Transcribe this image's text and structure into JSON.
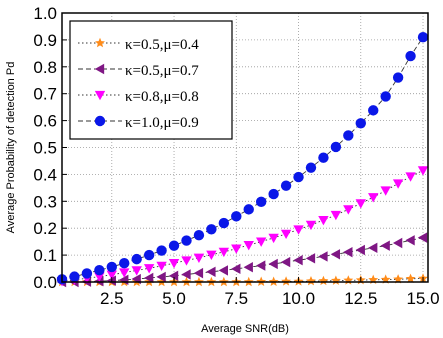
{
  "chart_data": {
    "type": "line",
    "title": "",
    "xlabel": "Average SNR(dB)",
    "ylabel": "Average Probability of detection Pd",
    "xlim": [
      0.5,
      15.2
    ],
    "ylim": [
      0,
      1.0
    ],
    "x_ticks": [
      2.5,
      5.0,
      7.5,
      10.0,
      12.5,
      15.0
    ],
    "x_tick_labels": [
      "2.5",
      "5.0",
      "7.5",
      "10.0",
      "12.5",
      "15.0"
    ],
    "y_ticks": [
      0,
      0.1,
      0.2,
      0.3,
      0.4,
      0.5,
      0.6,
      0.7,
      0.8,
      0.9,
      1.0
    ],
    "y_tick_labels": [
      "0.0",
      "0.1",
      "0.2",
      "0.3",
      "0.4",
      "0.5",
      "0.6",
      "0.7",
      "0.8",
      "0.9",
      "1.0"
    ],
    "grid": true,
    "legend_position": "top-left",
    "x": [
      0.5,
      1.0,
      1.5,
      2.0,
      2.5,
      3.0,
      3.5,
      4.0,
      4.5,
      5.0,
      5.5,
      6.0,
      6.5,
      7.0,
      7.5,
      8.0,
      8.5,
      9.0,
      9.5,
      10.0,
      10.5,
      11.0,
      11.5,
      12.0,
      12.5,
      13.0,
      13.5,
      14.0,
      14.5,
      15.0
    ],
    "series": [
      {
        "name": "κ=0.5,μ=0.4",
        "color": "#ff8c1a",
        "marker": "star",
        "line_style": "dotted",
        "values": [
          0.0,
          0.0,
          0.0,
          0.0,
          0.0,
          0.0,
          0.0,
          0.0,
          0.0,
          0.0,
          0.0,
          0.0,
          0.0,
          0.0,
          0.0,
          0.0,
          0.001,
          0.001,
          0.002,
          0.002,
          0.003,
          0.004,
          0.005,
          0.006,
          0.007,
          0.008,
          0.009,
          0.01,
          0.012,
          0.013
        ]
      },
      {
        "name": "κ=0.5,μ=0.7",
        "color": "#7f1784",
        "marker": "triangle-left",
        "line_style": "dashed",
        "values": [
          0.0,
          0.0,
          0.001,
          0.003,
          0.005,
          0.008,
          0.011,
          0.015,
          0.019,
          0.023,
          0.028,
          0.033,
          0.038,
          0.043,
          0.049,
          0.055,
          0.061,
          0.067,
          0.074,
          0.081,
          0.088,
          0.095,
          0.103,
          0.111,
          0.119,
          0.127,
          0.135,
          0.145,
          0.155,
          0.165
        ]
      },
      {
        "name": "κ=0.8,μ=0.8",
        "color": "#ff00ff",
        "marker": "triangle-down",
        "line_style": "dotted",
        "values": [
          0.003,
          0.008,
          0.014,
          0.02,
          0.027,
          0.035,
          0.043,
          0.051,
          0.06,
          0.07,
          0.08,
          0.09,
          0.101,
          0.112,
          0.124,
          0.137,
          0.15,
          0.164,
          0.179,
          0.195,
          0.212,
          0.23,
          0.249,
          0.27,
          0.292,
          0.315,
          0.34,
          0.366,
          0.392,
          0.415
        ]
      },
      {
        "name": "κ=1.0,μ=0.9",
        "color": "#0a17e8",
        "marker": "circle",
        "line_style": "dashed",
        "values": [
          0.01,
          0.02,
          0.032,
          0.044,
          0.056,
          0.07,
          0.085,
          0.1,
          0.117,
          0.135,
          0.154,
          0.174,
          0.196,
          0.219,
          0.244,
          0.27,
          0.298,
          0.327,
          0.358,
          0.39,
          0.425,
          0.462,
          0.502,
          0.545,
          0.59,
          0.638,
          0.69,
          0.76,
          0.84,
          0.91
        ]
      }
    ]
  }
}
